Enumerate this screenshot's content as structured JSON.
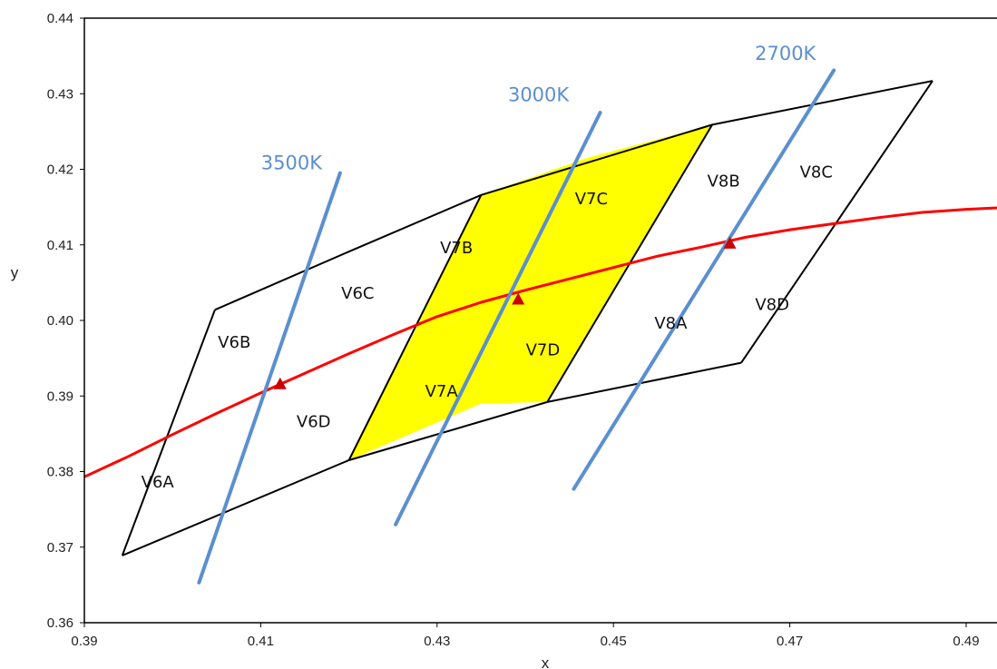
{
  "chart_data": {
    "type": "scatter",
    "title": "",
    "xlabel": "x",
    "ylabel": "y",
    "xlim": [
      0.39,
      0.4935
    ],
    "ylim": [
      0.36,
      0.44
    ],
    "x_ticks": [
      "0.39",
      "0.41",
      "0.43",
      "0.45",
      "0.47",
      "0.49"
    ],
    "y_ticks": [
      "0.36",
      "0.37",
      "0.38",
      "0.39",
      "0.40",
      "0.41",
      "0.42",
      "0.43",
      "0.44"
    ],
    "grid": false,
    "colors": {
      "highlight_fill": "#ffff00",
      "locus": "#ff0000",
      "cct_lines": "#5b8fcf",
      "outline": "#000000",
      "marker": "#cc0000"
    },
    "regions": [
      {
        "label": "V6A",
        "highlighted": false,
        "label_at": [
          0.3983,
          0.3785
        ],
        "vertices": [
          [
            0.3943,
            0.3689
          ],
          [
            0.3995,
            0.3848
          ],
          [
            0.42,
            0.3815
          ],
          [
            0.4153,
            0.377
          ]
        ]
      },
      {
        "label": "V6B",
        "highlighted": false,
        "label_at": [
          0.407,
          0.397
        ],
        "vertices": [
          [
            0.3995,
            0.3848
          ],
          [
            0.4048,
            0.4014
          ],
          [
            0.413,
            0.4051
          ],
          [
            0.4274,
            0.3984
          ]
        ]
      },
      {
        "label": "V6C",
        "highlighted": false,
        "label_at": [
          0.421,
          0.4035
        ],
        "vertices": [
          [
            0.413,
            0.4051
          ],
          [
            0.42,
            0.4091
          ],
          [
            0.435,
            0.4166
          ],
          [
            0.4274,
            0.3984
          ]
        ]
      },
      {
        "label": "V6D",
        "highlighted": false,
        "label_at": [
          0.416,
          0.3865
        ],
        "vertices": [
          [
            0.4123,
            0.3916
          ],
          [
            0.4274,
            0.3984
          ],
          [
            0.42,
            0.3815
          ],
          [
            0.4153,
            0.377
          ]
        ]
      },
      {
        "label": "V7A",
        "highlighted": true,
        "label_at": [
          0.4305,
          0.3905
        ],
        "vertices": [
          [
            0.42,
            0.3815
          ],
          [
            0.4274,
            0.3984
          ],
          [
            0.4392,
            0.4027
          ],
          [
            0.435,
            0.389
          ]
        ]
      },
      {
        "label": "V7B",
        "highlighted": true,
        "label_at": [
          0.4322,
          0.4095
        ],
        "vertices": [
          [
            0.4274,
            0.3984
          ],
          [
            0.435,
            0.4166
          ],
          [
            0.447,
            0.4215
          ],
          [
            0.4392,
            0.4027
          ]
        ]
      },
      {
        "label": "V7C",
        "highlighted": true,
        "label_at": [
          0.4475,
          0.416
        ],
        "vertices": [
          [
            0.4392,
            0.4027
          ],
          [
            0.447,
            0.4215
          ],
          [
            0.4612,
            0.4259
          ],
          [
            0.4515,
            0.4071
          ]
        ]
      },
      {
        "label": "V7D",
        "highlighted": true,
        "label_at": [
          0.442,
          0.396
        ],
        "vertices": [
          [
            0.435,
            0.389
          ],
          [
            0.4392,
            0.4027
          ],
          [
            0.4515,
            0.4071
          ],
          [
            0.4425,
            0.3892
          ]
        ]
      },
      {
        "label": "V8A",
        "highlighted": false,
        "label_at": [
          0.4565,
          0.3995
        ],
        "vertices": [
          [
            0.4425,
            0.3892
          ],
          [
            0.4515,
            0.4071
          ],
          [
            0.463,
            0.41
          ],
          [
            0.455,
            0.3925
          ]
        ]
      },
      {
        "label": "V8B",
        "highlighted": false,
        "label_at": [
          0.4625,
          0.4183
        ],
        "vertices": [
          [
            0.4515,
            0.4071
          ],
          [
            0.4612,
            0.4259
          ],
          [
            0.47,
            0.4282
          ],
          [
            0.463,
            0.41
          ]
        ]
      },
      {
        "label": "V8C",
        "highlighted": false,
        "label_at": [
          0.473,
          0.4195
        ],
        "vertices": [
          [
            0.463,
            0.41
          ],
          [
            0.47,
            0.4282
          ],
          [
            0.4862,
            0.4317
          ],
          [
            0.4755,
            0.4123
          ]
        ]
      },
      {
        "label": "V8D",
        "highlighted": false,
        "label_at": [
          0.468,
          0.402
        ],
        "vertices": [
          [
            0.455,
            0.3925
          ],
          [
            0.463,
            0.41
          ],
          [
            0.4755,
            0.4123
          ],
          [
            0.4645,
            0.3944
          ]
        ]
      }
    ],
    "outline": {
      "top_edge": [
        [
          0.4048,
          0.4014
        ],
        [
          0.42,
          0.4091
        ],
        [
          0.435,
          0.4166
        ],
        [
          0.4612,
          0.4259
        ],
        [
          0.4862,
          0.4317
        ]
      ],
      "bottom_edge": [
        [
          0.3943,
          0.3689
        ],
        [
          0.42,
          0.3815
        ],
        [
          0.4425,
          0.3892
        ],
        [
          0.4645,
          0.3944
        ]
      ],
      "inner_lines": [
        [
          [
            0.3943,
            0.3689
          ],
          [
            0.4048,
            0.4014
          ]
        ],
        [
          [
            0.42,
            0.3815
          ],
          [
            0.435,
            0.4166
          ]
        ],
        [
          [
            0.4425,
            0.3892
          ],
          [
            0.4612,
            0.4259
          ]
        ],
        [
          [
            0.4645,
            0.3944
          ],
          [
            0.4862,
            0.4317
          ]
        ]
      ]
    },
    "locus": {
      "x": [
        0.39,
        0.395,
        0.4,
        0.405,
        0.41,
        0.415,
        0.42,
        0.425,
        0.43,
        0.435,
        0.44,
        0.445,
        0.45,
        0.455,
        0.46,
        0.465,
        0.47,
        0.475,
        0.48,
        0.485,
        0.49,
        0.4935
      ],
      "y": [
        0.3793,
        0.382,
        0.3849,
        0.3877,
        0.3904,
        0.393,
        0.3956,
        0.3981,
        0.4005,
        0.4024,
        0.404,
        0.4055,
        0.407,
        0.4085,
        0.4097,
        0.411,
        0.412,
        0.4128,
        0.4136,
        0.4143,
        0.4147,
        0.4149
      ]
    },
    "cct_lines": [
      {
        "label": "3500K",
        "points": [
          [
            0.403,
            0.3653
          ],
          [
            0.419,
            0.4195
          ]
        ],
        "label_at": [
          0.4135,
          0.42
        ]
      },
      {
        "label": "3000K",
        "points": [
          [
            0.4253,
            0.373
          ],
          [
            0.4485,
            0.4275
          ]
        ],
        "label_at": [
          0.4415,
          0.429
        ]
      },
      {
        "label": "2700K",
        "points": [
          [
            0.4455,
            0.3777
          ],
          [
            0.475,
            0.4331
          ]
        ],
        "label_at": [
          0.4695,
          0.4345
        ]
      }
    ],
    "markers": [
      [
        0.4122,
        0.3915
      ],
      [
        0.4392,
        0.4027
      ],
      [
        0.4632,
        0.4101
      ]
    ]
  }
}
